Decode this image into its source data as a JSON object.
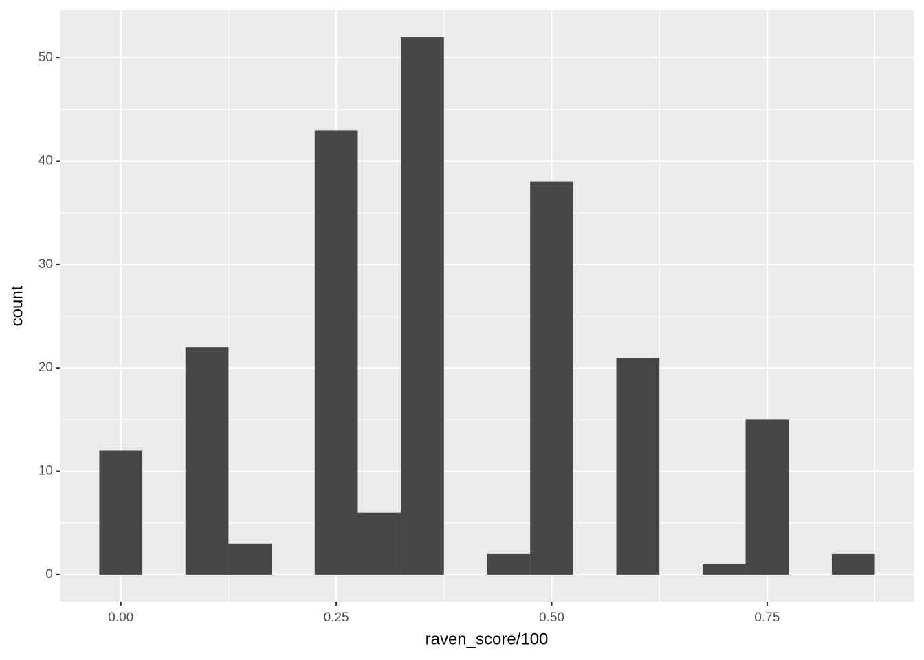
{
  "chart_data": {
    "type": "histogram",
    "x_label": "raven_score/100",
    "y_label": "count",
    "bins": [
      -0.025,
      0.025,
      0.075,
      0.125,
      0.175,
      0.225,
      0.275,
      0.325,
      0.375,
      0.425,
      0.475,
      0.525,
      0.575,
      0.625,
      0.675,
      0.725,
      0.775,
      0.825,
      0.875
    ],
    "values": [
      12,
      0,
      22,
      3,
      0,
      43,
      6,
      52,
      0,
      2,
      38,
      0,
      21,
      0,
      1,
      15,
      0,
      2
    ],
    "color": "#474747",
    "xlim": [
      -0.07,
      0.92
    ],
    "ylim": [
      -2.6,
      54.6
    ],
    "xticks": [
      {
        "value": 0,
        "label": "0.00"
      },
      {
        "value": 0.25,
        "label": "0.25"
      },
      {
        "value": 0.5,
        "label": "0.50"
      },
      {
        "value": 0.75,
        "label": "0.75"
      }
    ],
    "yticks": [
      0,
      10,
      20,
      30,
      40,
      50
    ],
    "grid": true
  }
}
